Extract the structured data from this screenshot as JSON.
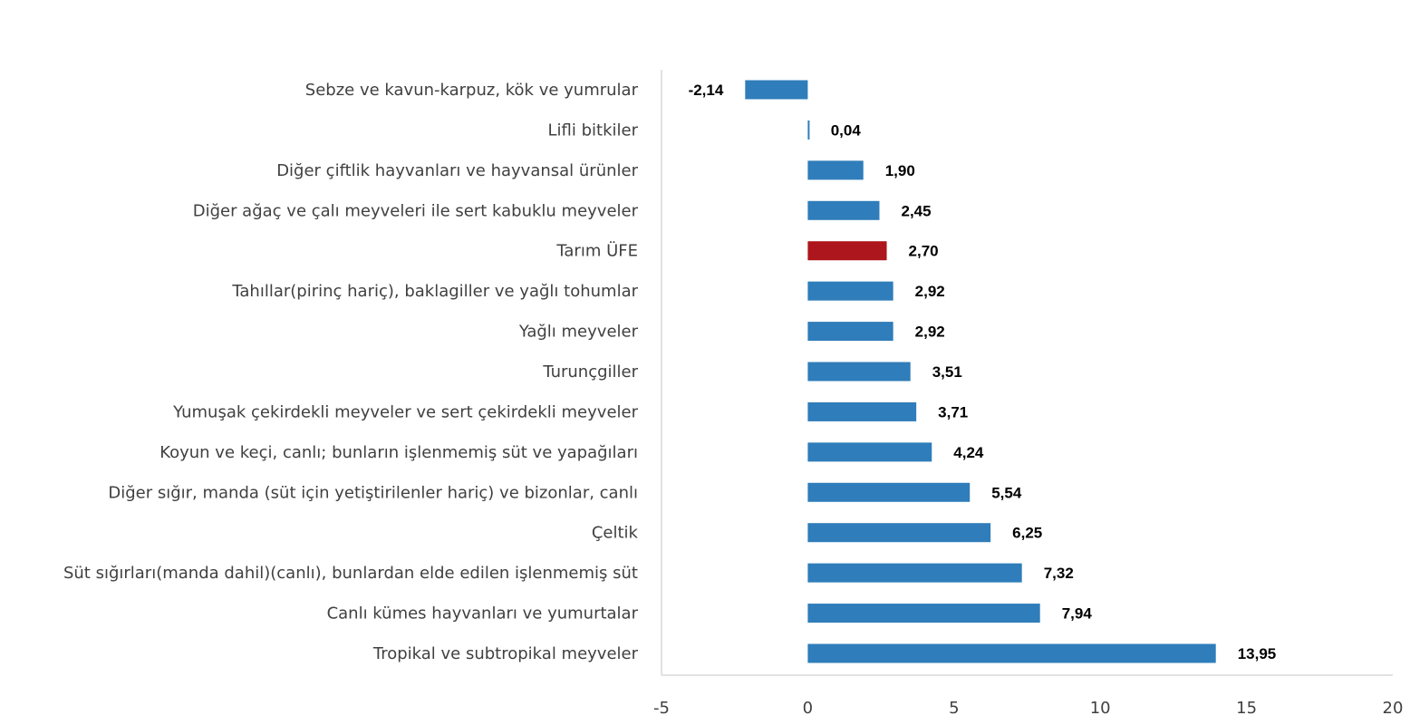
{
  "chart_data": {
    "type": "bar",
    "orientation": "horizontal",
    "categories": [
      "Sebze ve kavun-karpuz, kök ve yumrular",
      "Lifli bitkiler",
      "Diğer çiftlik hayvanları ve hayvansal ürünler",
      "Diğer ağaç ve çalı meyveleri ile sert kabuklu meyveler",
      "Tarım ÜFE",
      "Tahıllar(pirinç hariç), baklagiller ve yağlı tohumlar",
      "Yağlı meyveler",
      "Turunçgiller",
      "Yumuşak çekirdekli meyveler ve sert çekirdekli meyveler",
      "Koyun ve keçi, canlı; bunların işlenmemiş süt ve yapağıları",
      "Diğer sığır, manda (süt için yetiştirilenler hariç) ve bizonlar, canlı",
      "Çeltik",
      "Süt sığırları(manda dahil)(canlı), bunlardan elde edilen işlenmemiş süt",
      "Canlı kümes hayvanları ve yumurtalar",
      "Tropikal ve subtropikal meyveler"
    ],
    "values": [
      -2.14,
      0.04,
      1.9,
      2.45,
      2.7,
      2.92,
      2.92,
      3.51,
      3.71,
      4.24,
      5.54,
      6.25,
      7.32,
      7.94,
      13.95
    ],
    "data_labels": [
      "-2,14",
      "0,04",
      "1,90",
      "2,45",
      "2,70",
      "2,92",
      "2,92",
      "3,51",
      "3,71",
      "4,24",
      "5,54",
      "6,25",
      "7,32",
      "7,94",
      "13,95"
    ],
    "highlight_category": "Tarım ÜFE",
    "colors": {
      "default": "#2F7DBA",
      "highlight": "#AD161C"
    },
    "xlim": [
      -5,
      20
    ],
    "xticks": [
      -5,
      0,
      5,
      10,
      15,
      20
    ],
    "xtick_labels": [
      "-5",
      "0",
      "5",
      "10",
      "15",
      "20"
    ],
    "grid": false,
    "title": "",
    "xlabel": "",
    "ylabel": ""
  }
}
